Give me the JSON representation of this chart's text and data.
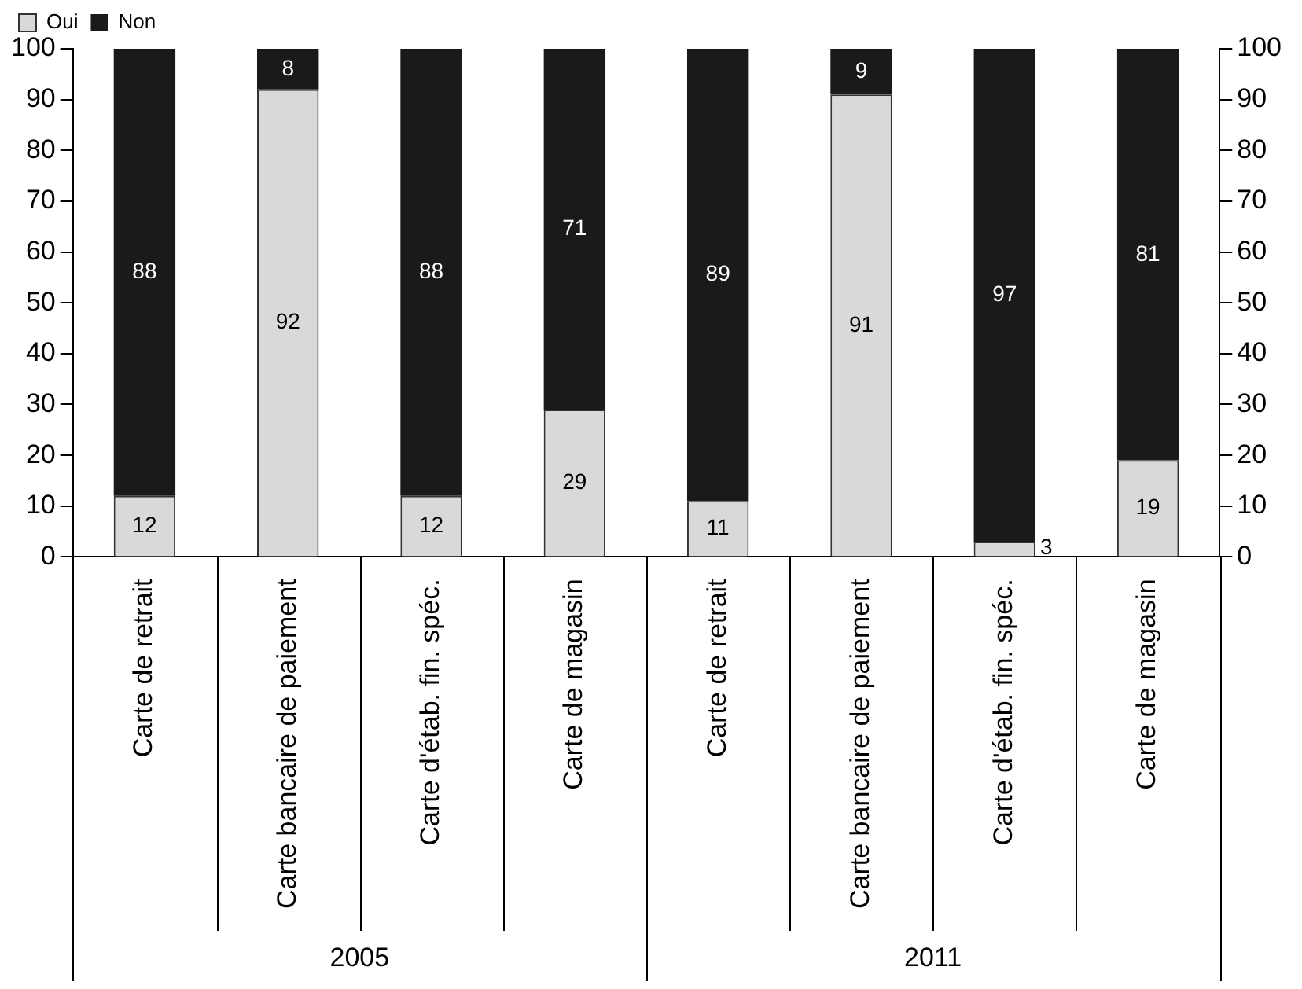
{
  "chart_data": {
    "type": "bar",
    "stacked": true,
    "categories": [
      "Carte de retrait",
      "Carte bancaire de paiement",
      "Carte d'étab. fin. spéc.",
      "Carte de magasin",
      "Carte de retrait",
      "Carte bancaire de paiement",
      "Carte d'étab. fin. spéc.",
      "Carte de magasin"
    ],
    "series": [
      {
        "name": "Oui",
        "color": "#d9d9d9",
        "values": [
          12,
          92,
          12,
          29,
          11,
          91,
          3,
          19
        ]
      },
      {
        "name": "Non",
        "color": "#1a1a1a",
        "values": [
          88,
          8,
          88,
          71,
          89,
          9,
          97,
          81
        ]
      }
    ],
    "ylim": [
      0,
      100
    ],
    "yticks": [
      0,
      10,
      20,
      30,
      40,
      50,
      60,
      70,
      80,
      90,
      100
    ],
    "y2lim": [
      0,
      100
    ],
    "y2ticks": [
      0,
      10,
      20,
      30,
      40,
      50,
      60,
      70,
      80,
      90,
      100
    ],
    "data_labels": true,
    "legend": "top left",
    "grid": false,
    "annotations": [
      "2005",
      "2011"
    ]
  }
}
